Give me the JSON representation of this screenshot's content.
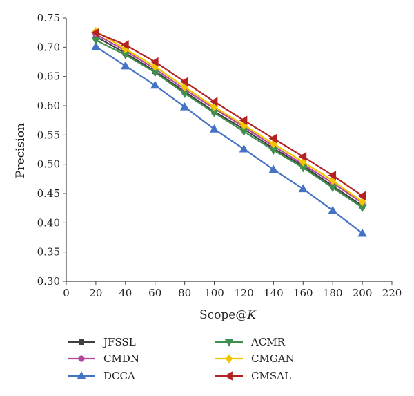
{
  "chart_data": {
    "type": "line",
    "title": "",
    "xlabel_main": "Scope@",
    "xlabel_var": "K",
    "ylabel": "Precision",
    "xlim": [
      0,
      220
    ],
    "ylim": [
      0.3,
      0.75
    ],
    "x_ticks": [
      0,
      20,
      40,
      60,
      80,
      100,
      120,
      140,
      160,
      180,
      200,
      220
    ],
    "y_ticks": [
      0.3,
      0.35,
      0.4,
      0.45,
      0.5,
      0.55,
      0.6,
      0.65,
      0.7,
      0.75
    ],
    "x_tick_labels": [
      "0",
      "20",
      "40",
      "60",
      "80",
      "100",
      "120",
      "140",
      "160",
      "180",
      "200",
      "220"
    ],
    "y_tick_labels": [
      "0.30",
      "0.35",
      "0.40",
      "0.45",
      "0.50",
      "0.55",
      "0.60",
      "0.65",
      "0.70",
      "0.75"
    ],
    "grid": false,
    "legend_position": "bottom",
    "x": [
      20,
      40,
      60,
      80,
      100,
      120,
      140,
      160,
      180,
      200
    ],
    "series": [
      {
        "name": "JFSSL",
        "marker": "square",
        "color": "#404040",
        "values": [
          0.718,
          0.69,
          0.659,
          0.624,
          0.59,
          0.56,
          0.527,
          0.497,
          0.463,
          0.429
        ]
      },
      {
        "name": "CMDN",
        "marker": "circle",
        "color": "#b0479b",
        "values": [
          0.722,
          0.694,
          0.663,
          0.628,
          0.595,
          0.564,
          0.531,
          0.5,
          0.468,
          0.434
        ]
      },
      {
        "name": "DCCA",
        "marker": "triangle-up",
        "color": "#4472c4",
        "values": [
          0.701,
          0.668,
          0.635,
          0.598,
          0.56,
          0.526,
          0.491,
          0.458,
          0.421,
          0.382
        ]
      },
      {
        "name": "ACMR",
        "marker": "triangle-down",
        "color": "#3f8f4f",
        "values": [
          0.712,
          0.687,
          0.657,
          0.621,
          0.588,
          0.556,
          0.524,
          0.494,
          0.46,
          0.426
        ]
      },
      {
        "name": "CMGAN",
        "marker": "diamond",
        "color": "#f2c500",
        "values": [
          0.727,
          0.697,
          0.667,
          0.632,
          0.598,
          0.567,
          0.535,
          0.504,
          0.472,
          0.436
        ]
      },
      {
        "name": "CMSAL",
        "marker": "triangle-left",
        "color": "#b22222",
        "values": [
          0.725,
          0.704,
          0.675,
          0.641,
          0.607,
          0.575,
          0.544,
          0.513,
          0.481,
          0.446
        ]
      }
    ]
  }
}
